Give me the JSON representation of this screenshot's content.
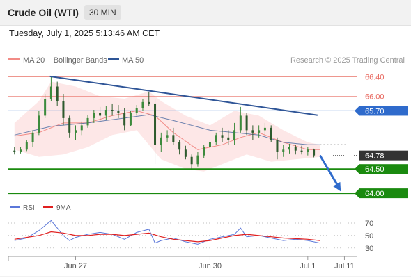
{
  "header": {
    "title": "Crude Oil (WTI)",
    "timeframe": "30 MIN"
  },
  "datetime": "Tuesday, July 1, 2025 5:13:46 AM CET",
  "watermark": "Research © 2025 Trading Central",
  "colors": {
    "resistance": "#e8685f",
    "resistance_blue": "#2f6bcc",
    "support": "#1a8a0f",
    "current": "#333333",
    "band_fill": "#fde4e4",
    "ma20": "#f28b86",
    "ma50": "#2e5596",
    "trend": "#2f5597",
    "candle_up": "#3c8a3c",
    "candle_down": "#2d5a2d",
    "rsi": "#5b77d9",
    "rsi_ma": "#e02020"
  },
  "chart_data": [
    {
      "type": "candlestick",
      "legend": [
        {
          "name": "MA 20 + Bollinger Bands",
          "color": "#f28b86"
        },
        {
          "name": "MA 50",
          "color": "#2e5596"
        }
      ],
      "price_levels": [
        {
          "value": 66.4,
          "label": "66.40",
          "kind": "resistance"
        },
        {
          "value": 66.0,
          "label": "66.00",
          "kind": "resistance"
        },
        {
          "value": 65.7,
          "label": "65.70",
          "kind": "resistance_blue"
        },
        {
          "value": 64.78,
          "label": "64.78",
          "kind": "current"
        },
        {
          "value": 64.5,
          "label": "64.50",
          "kind": "support"
        },
        {
          "value": 64.0,
          "label": "64.00",
          "kind": "support"
        }
      ],
      "x_ticks": [
        "Jun 27",
        "Jun 30",
        "Jul 1",
        "Jul 11"
      ],
      "x_tick_positions": [
        5,
        16,
        24,
        27
      ],
      "ylim": [
        63.93,
        66.58
      ],
      "x_range": [
        -0.5,
        28
      ],
      "trend_line": {
        "from": {
          "x": 2.9,
          "y": 66.41
        },
        "to": {
          "x": 24.8,
          "y": 65.61
        }
      },
      "forecast_arrow": {
        "from": {
          "x": 25.0,
          "y": 64.78
        },
        "to": {
          "x": 26.7,
          "y": 64.04
        }
      },
      "ohlc": [
        {
          "x": 0.0,
          "o": 64.88,
          "h": 64.96,
          "l": 64.8,
          "c": 64.85
        },
        {
          "x": 0.5,
          "o": 64.85,
          "h": 64.96,
          "l": 64.82,
          "c": 64.9
        },
        {
          "x": 1.0,
          "o": 64.9,
          "h": 65.1,
          "l": 64.87,
          "c": 65.05
        },
        {
          "x": 1.5,
          "o": 65.05,
          "h": 65.3,
          "l": 64.95,
          "c": 65.25
        },
        {
          "x": 2.0,
          "o": 65.25,
          "h": 65.7,
          "l": 65.2,
          "c": 65.6
        },
        {
          "x": 2.5,
          "o": 65.6,
          "h": 66.05,
          "l": 65.55,
          "c": 65.95
        },
        {
          "x": 3.0,
          "o": 65.95,
          "h": 66.41,
          "l": 65.9,
          "c": 66.2
        },
        {
          "x": 3.5,
          "o": 66.2,
          "h": 66.3,
          "l": 65.8,
          "c": 65.9
        },
        {
          "x": 4.0,
          "o": 65.9,
          "h": 66.05,
          "l": 65.4,
          "c": 65.55
        },
        {
          "x": 4.5,
          "o": 65.55,
          "h": 65.6,
          "l": 65.15,
          "c": 65.25
        },
        {
          "x": 5.0,
          "o": 65.25,
          "h": 65.4,
          "l": 65.1,
          "c": 65.3
        },
        {
          "x": 5.5,
          "o": 65.3,
          "h": 65.48,
          "l": 65.2,
          "c": 65.4
        },
        {
          "x": 6.0,
          "o": 65.4,
          "h": 65.62,
          "l": 65.35,
          "c": 65.55
        },
        {
          "x": 6.5,
          "o": 65.55,
          "h": 65.72,
          "l": 65.45,
          "c": 65.65
        },
        {
          "x": 7.0,
          "o": 65.65,
          "h": 65.78,
          "l": 65.5,
          "c": 65.6
        },
        {
          "x": 7.5,
          "o": 65.6,
          "h": 65.8,
          "l": 65.52,
          "c": 65.72
        },
        {
          "x": 8.0,
          "o": 65.72,
          "h": 65.85,
          "l": 65.6,
          "c": 65.7
        },
        {
          "x": 8.5,
          "o": 65.7,
          "h": 65.82,
          "l": 65.55,
          "c": 65.65
        },
        {
          "x": 9.0,
          "o": 65.65,
          "h": 65.75,
          "l": 65.3,
          "c": 65.4
        },
        {
          "x": 9.5,
          "o": 65.4,
          "h": 65.7,
          "l": 65.38,
          "c": 65.65
        },
        {
          "x": 10.0,
          "o": 65.65,
          "h": 65.82,
          "l": 65.6,
          "c": 65.75
        },
        {
          "x": 10.5,
          "o": 65.75,
          "h": 65.95,
          "l": 65.7,
          "c": 65.88
        },
        {
          "x": 11.0,
          "o": 65.88,
          "h": 66.08,
          "l": 65.8,
          "c": 65.85
        },
        {
          "x": 11.5,
          "o": 65.85,
          "h": 65.95,
          "l": 64.6,
          "c": 65.0
        },
        {
          "x": 12.0,
          "o": 65.0,
          "h": 65.25,
          "l": 64.85,
          "c": 65.15
        },
        {
          "x": 12.5,
          "o": 65.15,
          "h": 65.3,
          "l": 65.05,
          "c": 65.2
        },
        {
          "x": 13.0,
          "o": 65.2,
          "h": 65.35,
          "l": 65.0,
          "c": 65.05
        },
        {
          "x": 13.5,
          "o": 65.05,
          "h": 65.1,
          "l": 64.8,
          "c": 64.9
        },
        {
          "x": 14.0,
          "o": 64.9,
          "h": 64.98,
          "l": 64.7,
          "c": 64.75
        },
        {
          "x": 14.5,
          "o": 64.75,
          "h": 64.8,
          "l": 64.5,
          "c": 64.6
        },
        {
          "x": 15.0,
          "o": 64.6,
          "h": 64.85,
          "l": 64.55,
          "c": 64.78
        },
        {
          "x": 15.5,
          "o": 64.78,
          "h": 65.0,
          "l": 64.72,
          "c": 64.95
        },
        {
          "x": 16.0,
          "o": 64.95,
          "h": 65.1,
          "l": 64.88,
          "c": 65.05
        },
        {
          "x": 16.5,
          "o": 65.05,
          "h": 65.25,
          "l": 65.0,
          "c": 65.2
        },
        {
          "x": 17.0,
          "o": 65.2,
          "h": 65.35,
          "l": 65.05,
          "c": 65.15
        },
        {
          "x": 17.5,
          "o": 65.15,
          "h": 65.3,
          "l": 65.0,
          "c": 65.1
        },
        {
          "x": 18.0,
          "o": 65.1,
          "h": 65.45,
          "l": 65.0,
          "c": 65.3
        },
        {
          "x": 18.5,
          "o": 65.3,
          "h": 65.78,
          "l": 65.25,
          "c": 65.6
        },
        {
          "x": 19.0,
          "o": 65.6,
          "h": 65.65,
          "l": 65.2,
          "c": 65.3
        },
        {
          "x": 19.5,
          "o": 65.3,
          "h": 65.4,
          "l": 65.1,
          "c": 65.25
        },
        {
          "x": 20.0,
          "o": 65.25,
          "h": 65.4,
          "l": 65.15,
          "c": 65.3
        },
        {
          "x": 20.5,
          "o": 65.3,
          "h": 65.45,
          "l": 65.2,
          "c": 65.35
        },
        {
          "x": 21.0,
          "o": 65.35,
          "h": 65.4,
          "l": 65.05,
          "c": 65.1
        },
        {
          "x": 21.5,
          "o": 65.1,
          "h": 65.15,
          "l": 64.7,
          "c": 64.85
        },
        {
          "x": 22.0,
          "o": 64.85,
          "h": 65.0,
          "l": 64.75,
          "c": 64.9
        },
        {
          "x": 22.5,
          "o": 64.9,
          "h": 65.02,
          "l": 64.82,
          "c": 64.95
        },
        {
          "x": 23.0,
          "o": 64.95,
          "h": 65.0,
          "l": 64.8,
          "c": 64.88
        },
        {
          "x": 23.5,
          "o": 64.88,
          "h": 64.98,
          "l": 64.8,
          "c": 64.85
        },
        {
          "x": 24.0,
          "o": 64.85,
          "h": 64.95,
          "l": 64.78,
          "c": 64.9
        },
        {
          "x": 24.5,
          "o": 64.9,
          "h": 64.92,
          "l": 64.74,
          "c": 64.78
        }
      ],
      "ma20": [
        [
          0,
          65.18
        ],
        [
          2,
          65.25
        ],
        [
          4,
          65.45
        ],
        [
          6,
          65.45
        ],
        [
          8,
          65.6
        ],
        [
          10,
          65.7
        ],
        [
          11.5,
          65.6
        ],
        [
          13,
          65.25
        ],
        [
          15,
          64.9
        ],
        [
          17,
          65.0
        ],
        [
          18.5,
          65.15
        ],
        [
          20,
          65.25
        ],
        [
          22,
          65.05
        ],
        [
          24,
          64.9
        ],
        [
          25,
          64.9
        ]
      ],
      "bb_upper": [
        [
          0,
          65.45
        ],
        [
          2,
          65.9
        ],
        [
          3,
          66.3
        ],
        [
          5,
          66.2
        ],
        [
          7,
          66.0
        ],
        [
          9,
          65.95
        ],
        [
          11,
          66.1
        ],
        [
          12,
          65.9
        ],
        [
          14,
          65.6
        ],
        [
          16,
          65.4
        ],
        [
          18,
          65.7
        ],
        [
          20,
          65.6
        ],
        [
          22,
          65.3
        ],
        [
          24,
          65.05
        ],
        [
          25,
          65.0
        ]
      ],
      "bb_lower": [
        [
          0,
          64.9
        ],
        [
          2,
          64.75
        ],
        [
          4,
          64.8
        ],
        [
          6,
          64.95
        ],
        [
          8,
          65.2
        ],
        [
          10,
          65.3
        ],
        [
          12,
          64.7
        ],
        [
          14,
          64.5
        ],
        [
          15.5,
          64.45
        ],
        [
          17,
          64.6
        ],
        [
          19,
          64.8
        ],
        [
          21,
          64.65
        ],
        [
          23,
          64.7
        ],
        [
          25,
          64.75
        ]
      ],
      "ma50": [
        [
          0,
          65.2
        ],
        [
          3,
          65.38
        ],
        [
          6,
          65.45
        ],
        [
          9,
          65.55
        ],
        [
          11,
          65.62
        ],
        [
          13,
          65.5
        ],
        [
          16,
          65.3
        ],
        [
          18,
          65.25
        ],
        [
          20,
          65.2
        ],
        [
          22,
          65.05
        ],
        [
          24,
          65.0
        ],
        [
          25,
          65.0
        ]
      ],
      "ma50_projection": [
        [
          25,
          65.0
        ],
        [
          27.3,
          65.0
        ]
      ]
    },
    {
      "type": "line",
      "legend": [
        {
          "name": "RSI",
          "color": "#5b77d9"
        },
        {
          "name": "9MA",
          "color": "#e02020"
        }
      ],
      "ylim": [
        22,
        80
      ],
      "y_ticks": [
        70,
        50,
        30
      ],
      "rsi": [
        [
          0,
          42
        ],
        [
          1,
          46
        ],
        [
          2,
          58
        ],
        [
          2.5,
          66
        ],
        [
          3,
          74
        ],
        [
          3.5,
          62
        ],
        [
          4,
          50
        ],
        [
          4.5,
          42
        ],
        [
          5,
          47
        ],
        [
          6,
          52
        ],
        [
          7,
          55
        ],
        [
          8,
          52
        ],
        [
          9,
          44
        ],
        [
          10,
          55
        ],
        [
          11,
          60
        ],
        [
          11.5,
          38
        ],
        [
          12,
          42
        ],
        [
          13,
          46
        ],
        [
          14,
          40
        ],
        [
          15,
          36
        ],
        [
          16,
          44
        ],
        [
          17,
          48
        ],
        [
          18,
          52
        ],
        [
          18.5,
          62
        ],
        [
          19,
          48
        ],
        [
          20,
          50
        ],
        [
          21,
          46
        ],
        [
          22,
          42
        ],
        [
          23,
          44
        ],
        [
          24,
          42
        ],
        [
          25,
          38
        ]
      ],
      "rsi_ma": [
        [
          0,
          44
        ],
        [
          2,
          50
        ],
        [
          3,
          56
        ],
        [
          4,
          54
        ],
        [
          5,
          50
        ],
        [
          6,
          50
        ],
        [
          7,
          52
        ],
        [
          8,
          52
        ],
        [
          9,
          50
        ],
        [
          10,
          52
        ],
        [
          11,
          54
        ],
        [
          12,
          48
        ],
        [
          13,
          44
        ],
        [
          14,
          42
        ],
        [
          15,
          40
        ],
        [
          16,
          42
        ],
        [
          17,
          46
        ],
        [
          18,
          50
        ],
        [
          19,
          52
        ],
        [
          20,
          50
        ],
        [
          21,
          48
        ],
        [
          22,
          46
        ],
        [
          23,
          45
        ],
        [
          24,
          44
        ],
        [
          25,
          42
        ]
      ]
    }
  ]
}
